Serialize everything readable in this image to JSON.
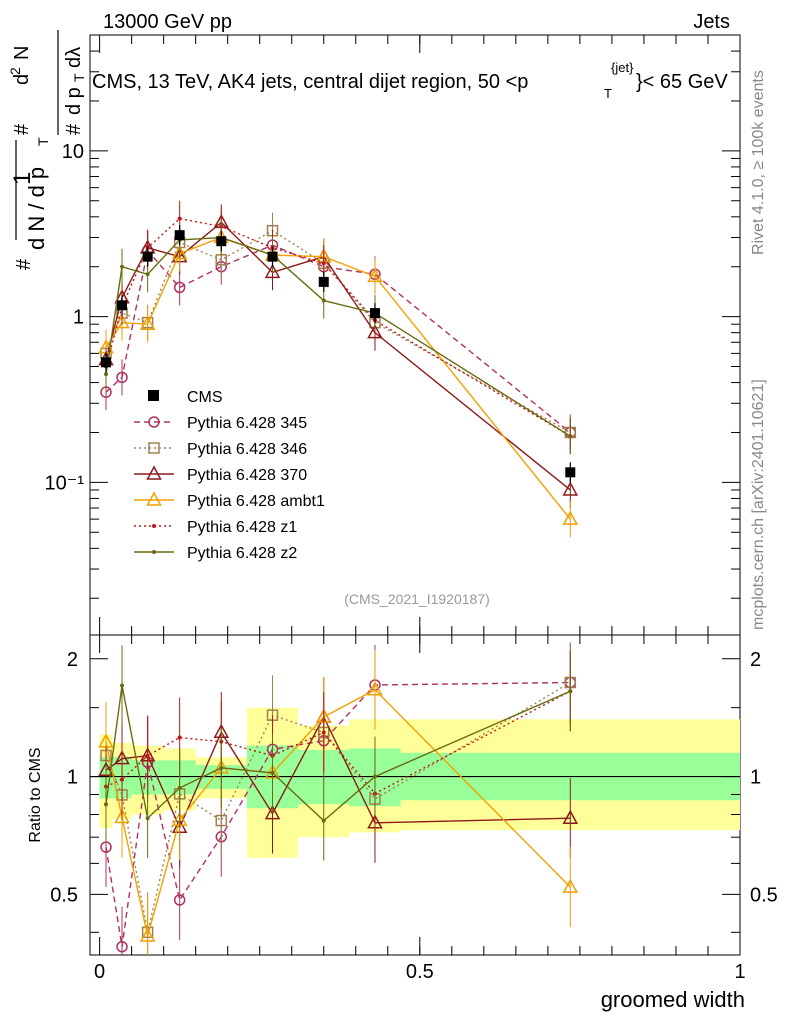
{
  "header": {
    "left": "13000 GeV pp",
    "right": "Jets",
    "rivet": "Rivet 4.1.0, ≥ 100k events",
    "mcplots": "mcplots.cern.ch [arXiv:2401.10621]",
    "analysis": "(CMS_2021_I1920187)",
    "title_prefix": "CMS, 13 TeV, AK4 jets, central dijet region, 50 <p",
    "title_sup": "{jet}",
    "title_sub": "T",
    "title_suffix": "}< 65 GeV"
  },
  "chart_data": {
    "type": "line",
    "main": {
      "ylabel": "1/dN/dpT dN²/dpT dλ (log scale)",
      "ylim": [
        0.012,
        50
      ],
      "yscale": "log",
      "ytick_labels": [
        "10",
        "1",
        "10⁻¹"
      ],
      "ytick_values": [
        10,
        1,
        0.1
      ]
    },
    "ratio": {
      "ylabel": "Ratio to CMS",
      "ylim": [
        0.35,
        2.3
      ],
      "yscale": "log",
      "ytick_labels": [
        "2",
        "1",
        "0.5"
      ],
      "ytick_values": [
        2,
        1,
        0.5
      ]
    },
    "xlabel": "groomed width",
    "xlim": [
      -0.015,
      1.0
    ],
    "xtick_labels": [
      "0",
      "0.5",
      "1"
    ],
    "xtick_values": [
      0,
      0.5,
      1
    ],
    "x": [
      0.01,
      0.035,
      0.075,
      0.125,
      0.19,
      0.27,
      0.35,
      0.43,
      0.735
    ],
    "bin_edges": [
      0.0,
      0.02,
      0.05,
      0.1,
      0.15,
      0.23,
      0.31,
      0.39,
      0.47,
      1.0
    ],
    "cms": {
      "name": "CMS",
      "values": [
        0.53,
        1.17,
        2.3,
        3.1,
        2.85,
        2.3,
        1.62,
        1.05,
        0.115
      ],
      "band_stat": [
        [
          0.88,
          1.12
        ],
        [
          0.88,
          1.12
        ],
        [
          0.9,
          1.1
        ],
        [
          0.9,
          1.1
        ],
        [
          0.93,
          1.07
        ],
        [
          0.83,
          1.2
        ],
        [
          0.85,
          1.17
        ],
        [
          0.84,
          1.18
        ],
        [
          0.87,
          1.15
        ]
      ],
      "band_tot": [
        [
          0.74,
          1.28
        ],
        [
          0.78,
          1.22
        ],
        [
          0.8,
          1.2
        ],
        [
          0.82,
          1.18
        ],
        [
          0.88,
          1.12
        ],
        [
          0.62,
          1.5
        ],
        [
          0.7,
          1.35
        ],
        [
          0.72,
          1.4
        ],
        [
          0.73,
          1.4
        ]
      ]
    },
    "series": [
      {
        "name": "Pythia 6.428 345",
        "color": "#b03060",
        "dash": "6,4",
        "marker": "circle",
        "values": [
          0.35,
          0.43,
          2.5,
          1.5,
          2.0,
          2.7,
          2.0,
          1.8,
          0.2
        ]
      },
      {
        "name": "Pythia 6.428 346",
        "color": "#a08050",
        "dash": "2,3",
        "marker": "square",
        "values": [
          0.6,
          1.05,
          0.92,
          2.8,
          2.2,
          3.3,
          2.1,
          0.92,
          0.2
        ]
      },
      {
        "name": "Pythia 6.428 370",
        "color": "#8b1a1a",
        "dash": "",
        "marker": "triangle",
        "values": [
          0.55,
          1.3,
          2.6,
          2.3,
          3.7,
          1.85,
          2.3,
          0.8,
          0.09
        ]
      },
      {
        "name": "Pythia 6.428 ambt1",
        "color": "#f0a000",
        "dash": "",
        "marker": "triangle",
        "values": [
          0.65,
          0.92,
          0.9,
          2.4,
          3.0,
          2.35,
          2.3,
          1.75,
          0.06
        ]
      },
      {
        "name": "Pythia 6.428 z1",
        "color": "#c01818",
        "dash": "2,3",
        "marker": "dot",
        "values": [
          0.5,
          1.15,
          2.6,
          3.9,
          3.5,
          2.6,
          2.1,
          0.95,
          0.19
        ]
      },
      {
        "name": "Pythia 6.428 z2",
        "color": "#6b6b10",
        "dash": "",
        "marker": "dot",
        "values": [
          0.45,
          2.0,
          1.8,
          2.9,
          3.0,
          2.35,
          1.25,
          1.05,
          0.19
        ]
      }
    ]
  }
}
